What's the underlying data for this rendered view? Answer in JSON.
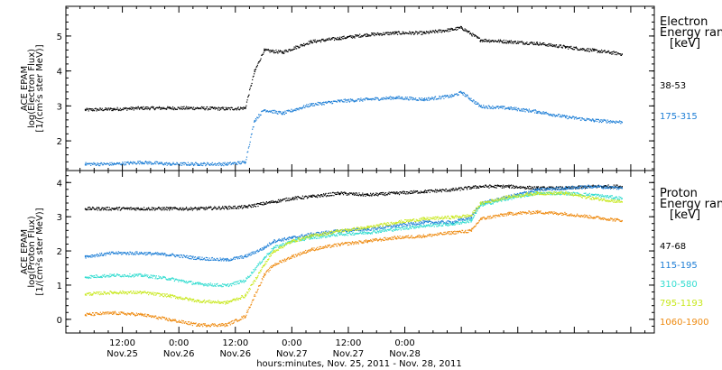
{
  "chart_data": [
    {
      "type": "scatter",
      "ylabel_lines": [
        "ACE EPAM",
        "log(Electron Flux)",
        "[1/(cm²s ster MeV)]"
      ],
      "ylim": [
        1.15,
        5.85
      ],
      "yticks": [
        2,
        3,
        4,
        5
      ],
      "legend_title_lines": [
        "Electron",
        "Energy range",
        "[keV]"
      ],
      "series": [
        {
          "name": "38-53",
          "color": "#000000",
          "x": [
            0,
            6,
            12,
            18,
            24,
            30,
            34,
            36,
            38,
            42,
            48,
            54,
            60,
            66,
            72,
            78,
            80,
            84,
            90,
            96,
            102,
            108,
            114
          ],
          "y": [
            2.9,
            2.92,
            2.95,
            2.95,
            2.95,
            2.93,
            2.95,
            4.0,
            4.6,
            4.55,
            4.85,
            4.95,
            5.05,
            5.1,
            5.1,
            5.2,
            5.25,
            4.9,
            4.85,
            4.8,
            4.7,
            4.6,
            4.5
          ]
        },
        {
          "name": "175-315",
          "color": "#1f7fd6",
          "x": [
            0,
            6,
            12,
            18,
            24,
            30,
            34,
            36,
            38,
            42,
            48,
            54,
            60,
            66,
            72,
            78,
            80,
            84,
            90,
            96,
            102,
            108,
            114
          ],
          "y": [
            1.35,
            1.35,
            1.4,
            1.35,
            1.35,
            1.35,
            1.4,
            2.6,
            2.9,
            2.8,
            3.05,
            3.15,
            3.2,
            3.25,
            3.2,
            3.3,
            3.4,
            3.0,
            2.95,
            2.85,
            2.7,
            2.6,
            2.55
          ]
        }
      ]
    },
    {
      "type": "scatter",
      "ylabel_lines": [
        "ACE EPAM",
        "log(Proton Flux)",
        "[1/(cm²s ster MeV)]"
      ],
      "ylim": [
        -0.4,
        4.35
      ],
      "yticks": [
        0,
        1,
        2,
        3,
        4
      ],
      "legend_title_lines": [
        "Proton",
        "Energy range",
        "[keV]"
      ],
      "series": [
        {
          "name": "47-68",
          "color": "#000000",
          "x": [
            0,
            6,
            12,
            18,
            24,
            30,
            34,
            40,
            44,
            48,
            54,
            60,
            66,
            72,
            78,
            84,
            90,
            96,
            102,
            108,
            114
          ],
          "y": [
            3.25,
            3.25,
            3.25,
            3.25,
            3.25,
            3.28,
            3.3,
            3.45,
            3.55,
            3.6,
            3.7,
            3.65,
            3.7,
            3.75,
            3.8,
            3.9,
            3.9,
            3.85,
            3.85,
            3.9,
            3.9
          ]
        },
        {
          "name": "115-195",
          "color": "#1f7fd6",
          "x": [
            0,
            6,
            12,
            18,
            24,
            30,
            34,
            38,
            40,
            44,
            48,
            54,
            60,
            66,
            72,
            78,
            82,
            84,
            90,
            96,
            102,
            108,
            114
          ],
          "y": [
            1.85,
            1.95,
            1.95,
            1.9,
            1.8,
            1.75,
            1.85,
            2.1,
            2.3,
            2.4,
            2.5,
            2.6,
            2.65,
            2.75,
            2.85,
            2.85,
            3.0,
            3.4,
            3.6,
            3.8,
            3.85,
            3.9,
            3.85
          ]
        },
        {
          "name": "310-580",
          "color": "#33dcd0",
          "x": [
            0,
            6,
            12,
            18,
            24,
            30,
            34,
            38,
            40,
            44,
            48,
            54,
            60,
            66,
            72,
            78,
            82,
            84,
            90,
            96,
            102,
            108,
            114
          ],
          "y": [
            1.25,
            1.3,
            1.3,
            1.2,
            1.05,
            1.0,
            1.15,
            1.8,
            2.1,
            2.3,
            2.4,
            2.5,
            2.55,
            2.65,
            2.75,
            2.8,
            2.9,
            3.35,
            3.55,
            3.7,
            3.7,
            3.65,
            3.55
          ]
        },
        {
          "name": "795-1193",
          "color": "#c8e81e",
          "x": [
            0,
            6,
            12,
            18,
            24,
            30,
            34,
            38,
            40,
            44,
            48,
            54,
            60,
            66,
            72,
            78,
            82,
            84,
            90,
            96,
            102,
            108,
            114
          ],
          "y": [
            0.75,
            0.8,
            0.8,
            0.7,
            0.55,
            0.5,
            0.7,
            1.6,
            2.0,
            2.3,
            2.45,
            2.6,
            2.7,
            2.85,
            2.95,
            3.0,
            3.05,
            3.4,
            3.6,
            3.7,
            3.7,
            3.55,
            3.45
          ]
        },
        {
          "name": "1060-1900",
          "color": "#ee8a10",
          "x": [
            0,
            6,
            12,
            18,
            24,
            30,
            34,
            38,
            40,
            44,
            48,
            54,
            60,
            66,
            72,
            78,
            82,
            84,
            90,
            96,
            102,
            108,
            114
          ],
          "y": [
            0.15,
            0.2,
            0.15,
            0.0,
            -0.15,
            -0.15,
            0.1,
            1.3,
            1.6,
            1.85,
            2.05,
            2.2,
            2.3,
            2.4,
            2.45,
            2.55,
            2.6,
            2.95,
            3.1,
            3.15,
            3.1,
            3.0,
            2.9
          ]
        }
      ]
    }
  ],
  "x_axis": {
    "domain_hours": [
      -4,
      121
    ],
    "xlabel": "hours:minutes, Nov. 25, 2011 - Nov. 28, 2011",
    "ticks": [
      {
        "hour": 8,
        "time": "12:00",
        "date": "Nov.25"
      },
      {
        "hour": 20,
        "time": "0:00",
        "date": "Nov.26"
      },
      {
        "hour": 32,
        "time": "12:00",
        "date": "Nov.26"
      },
      {
        "hour": 44,
        "time": "0:00",
        "date": "Nov.27"
      },
      {
        "hour": 56,
        "time": "12:00",
        "date": "Nov.27"
      },
      {
        "hour": 68,
        "time": "0:00",
        "date": "Nov.28"
      }
    ]
  }
}
